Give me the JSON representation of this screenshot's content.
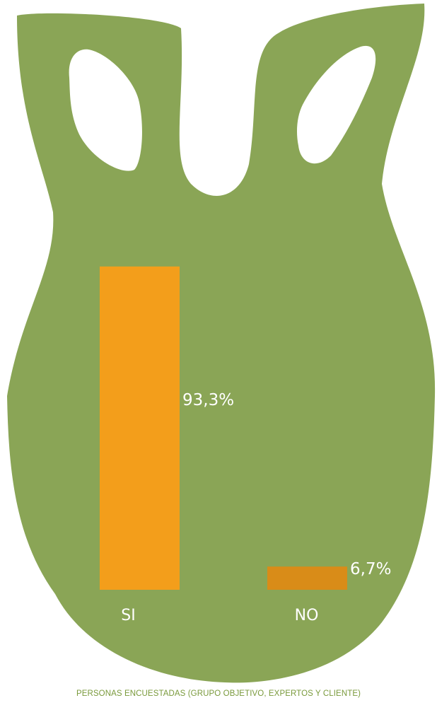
{
  "colors": {
    "bag": "#8aa556",
    "bar_si": "#f39e1b",
    "bar_no": "#d98c18",
    "caption": "#7a9a3c",
    "label": "#ffffff"
  },
  "chart_data": {
    "type": "bar",
    "categories": [
      "SI",
      "NO"
    ],
    "values": [
      93.3,
      6.7
    ],
    "value_labels": [
      "93,3%",
      "6,7%"
    ],
    "unit": "%",
    "ylim": [
      0,
      100
    ],
    "title": "",
    "xlabel": "PERSONAS ENCUESTADAS  (GRUPO OBJETIVO, EXPERTOS Y CLIENTE)",
    "ylabel": "",
    "grid": false,
    "legend": "none"
  }
}
